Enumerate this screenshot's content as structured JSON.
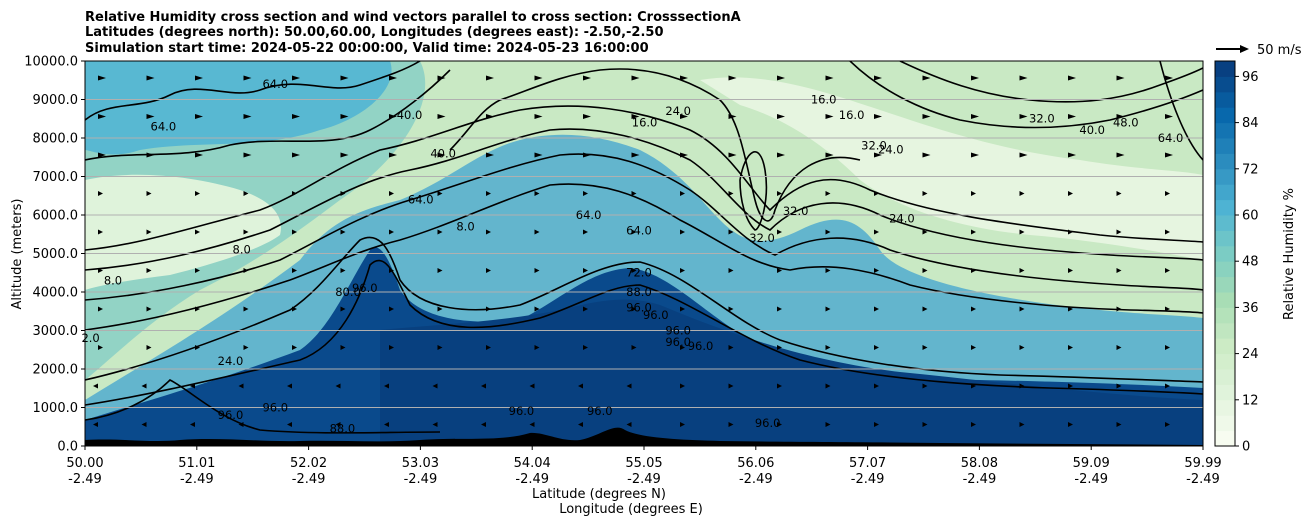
{
  "chart_data": {
    "type": "contour",
    "title_lines": [
      "Relative Humidity cross section and wind vectors parallel to cross section: CrosssectionA",
      "Latitudes (degrees north): 50.00,60.00, Longitudes (degrees east): -2.50,-2.50",
      "Simulation start time: 2024-05-22 00:00:00, Valid time: 2024-05-23 16:00:00"
    ],
    "ylabel": "Altitude (meters)",
    "xlabel_lines": [
      "Latitude (degrees N)",
      "Longitude (degrees E)"
    ],
    "x_range": [
      50.0,
      59.99
    ],
    "y_range": [
      0,
      10000
    ],
    "y_ticks": [
      0,
      1000,
      2000,
      3000,
      4000,
      5000,
      6000,
      7000,
      8000,
      9000,
      10000
    ],
    "y_tick_labels": [
      "0.0",
      "1000.0",
      "2000.0",
      "3000.0",
      "4000.0",
      "5000.0",
      "6000.0",
      "7000.0",
      "8000.0",
      "9000.0",
      "10000.0"
    ],
    "x_ticks": [
      {
        "lat": "50.00",
        "lon": "-2.49"
      },
      {
        "lat": "51.01",
        "lon": "-2.49"
      },
      {
        "lat": "52.02",
        "lon": "-2.49"
      },
      {
        "lat": "53.03",
        "lon": "-2.49"
      },
      {
        "lat": "54.04",
        "lon": "-2.49"
      },
      {
        "lat": "55.05",
        "lon": "-2.49"
      },
      {
        "lat": "56.06",
        "lon": "-2.49"
      },
      {
        "lat": "57.07",
        "lon": "-2.49"
      },
      {
        "lat": "58.08",
        "lon": "-2.49"
      },
      {
        "lat": "59.09",
        "lon": "-2.49"
      },
      {
        "lat": "59.99",
        "lon": "-2.49"
      }
    ],
    "grid": "horizontal",
    "colorbar": {
      "label": "Relative Humidity %",
      "range": [
        0,
        100
      ],
      "levels": 25,
      "ticks": [
        "0",
        "12",
        "24",
        "36",
        "48",
        "60",
        "72",
        "84",
        "96"
      ],
      "colors": [
        "#f7fcf0",
        "#e0f3db",
        "#ccebc5",
        "#a8ddb5",
        "#7bccc4",
        "#4eb3d3",
        "#2b8cbe",
        "#0868ac",
        "#084081"
      ]
    },
    "wind_key": {
      "label": "50 m/s"
    },
    "contour_labels": [
      {
        "text": "64.0",
        "lat": 50.7,
        "alt": 8200
      },
      {
        "text": "64.0",
        "lat": 53.0,
        "alt": 6300
      },
      {
        "text": "40.0",
        "lat": 53.2,
        "alt": 7500
      },
      {
        "text": "16.0",
        "lat": 55.0,
        "alt": 8300
      },
      {
        "text": "24.0",
        "lat": 55.3,
        "alt": 8600
      },
      {
        "text": "16.0",
        "lat": 56.6,
        "alt": 8900
      },
      {
        "text": "16.0",
        "lat": 56.85,
        "alt": 8500
      },
      {
        "text": "32.0",
        "lat": 57.05,
        "alt": 7700
      },
      {
        "text": "24.0",
        "lat": 57.2,
        "alt": 7600
      },
      {
        "text": "24.0",
        "lat": 57.3,
        "alt": 5800
      },
      {
        "text": "32.0",
        "lat": 58.55,
        "alt": 8400
      },
      {
        "text": "40.0",
        "lat": 59.0,
        "alt": 8100
      },
      {
        "text": "48.0",
        "lat": 59.3,
        "alt": 8300
      },
      {
        "text": "64.0",
        "lat": 59.7,
        "alt": 7900
      },
      {
        "text": "32.0",
        "lat": 56.05,
        "alt": 5300
      },
      {
        "text": "32.0",
        "lat": 56.35,
        "alt": 6000
      },
      {
        "text": "8.0",
        "lat": 50.25,
        "alt": 4200
      },
      {
        "text": "8.0",
        "lat": 51.4,
        "alt": 5000
      },
      {
        "text": "8.0",
        "lat": 53.4,
        "alt": 5600
      },
      {
        "text": "64.0",
        "lat": 54.5,
        "alt": 5900
      },
      {
        "text": "64.0",
        "lat": 54.95,
        "alt": 5500
      },
      {
        "text": "72.0",
        "lat": 54.95,
        "alt": 4400
      },
      {
        "text": "88.0",
        "lat": 54.95,
        "alt": 3900
      },
      {
        "text": "96.0",
        "lat": 54.95,
        "alt": 3500
      },
      {
        "text": "96.0",
        "lat": 55.1,
        "alt": 3300
      },
      {
        "text": "96.0",
        "lat": 55.3,
        "alt": 2900
      },
      {
        "text": "96.0",
        "lat": 55.3,
        "alt": 2600
      },
      {
        "text": "96.0",
        "lat": 55.5,
        "alt": 2500
      },
      {
        "text": "80.0",
        "lat": 52.35,
        "alt": 3900
      },
      {
        "text": "96.0",
        "lat": 52.5,
        "alt": 4000
      },
      {
        "text": "2.0",
        "lat": 50.05,
        "alt": 2700
      },
      {
        "text": "24.0",
        "lat": 51.3,
        "alt": 2100
      },
      {
        "text": "96.0",
        "lat": 51.7,
        "alt": 900
      },
      {
        "text": "88.0",
        "lat": 52.3,
        "alt": 350
      },
      {
        "text": "96.0",
        "lat": 53.9,
        "alt": 800
      },
      {
        "text": "96.0",
        "lat": 54.6,
        "alt": 800
      },
      {
        "text": "96.0",
        "lat": 56.1,
        "alt": 500
      },
      {
        "text": "96.0",
        "lat": 51.3,
        "alt": 700
      },
      {
        "text": "64.0",
        "lat": 51.7,
        "alt": 9300
      },
      {
        "text": "40.0",
        "lat": 52.9,
        "alt": 8500
      }
    ]
  }
}
